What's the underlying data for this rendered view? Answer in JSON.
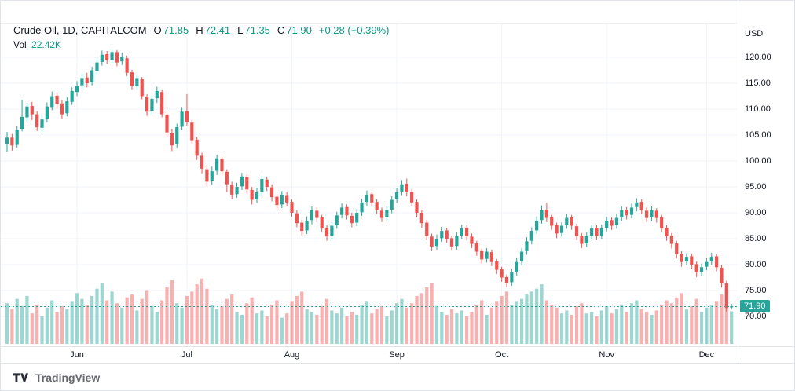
{
  "header": {
    "title": "Crude Oil, 1D, CAPITALCOM",
    "ohlc": {
      "o_label": "O",
      "o": "71.85",
      "h_label": "H",
      "h": "72.41",
      "l_label": "L",
      "l": "71.35",
      "c_label": "C",
      "c": "71.90"
    },
    "change": "+0.28 (+0.39%)",
    "vol_label": "Vol",
    "vol_value": "22.42K"
  },
  "price_axis": {
    "currency": "USD",
    "labels": [
      "120.00",
      "115.00",
      "110.00",
      "105.00",
      "100.00",
      "95.00",
      "90.00",
      "85.00",
      "80.00",
      "75.00",
      "70.00"
    ],
    "last_price_label": "71.90"
  },
  "time_axis": {
    "labels": [
      {
        "text": "Jun",
        "index": 14
      },
      {
        "text": "Jul",
        "index": 36
      },
      {
        "text": "Aug",
        "index": 57
      },
      {
        "text": "Sep",
        "index": 78
      },
      {
        "text": "Oct",
        "index": 99
      },
      {
        "text": "Nov",
        "index": 120
      },
      {
        "text": "Dec",
        "index": 140
      }
    ]
  },
  "footer": {
    "brand": "TradingView"
  },
  "colors": {
    "up": "#26a69a",
    "down": "#ef5350",
    "value_text": "#089981",
    "vol_up": "rgba(38,166,154,0.45)",
    "vol_down": "rgba(239,83,80,0.45)",
    "grid": "#f0f3fa",
    "border": "#e0e3eb",
    "price_line": "#26a69a",
    "last_tag_bg": "#26a69a"
  },
  "chart_data": {
    "type": "candlestick",
    "title": "Crude Oil, 1D, CAPITALCOM",
    "symbol": "Crude Oil",
    "interval": "1D",
    "exchange": "CAPITALCOM",
    "legend_position": "top-left",
    "y_axis": {
      "currency": "USD",
      "tick_min": 70,
      "tick_max": 120,
      "tick_step": 5
    },
    "x_axis_months": [
      "Jun",
      "Jul",
      "Aug",
      "Sep",
      "Oct",
      "Nov",
      "Dec"
    ],
    "last_price": 71.9,
    "last_volume_k": 22.42,
    "columns": [
      "open",
      "high",
      "low",
      "close",
      "volume_k"
    ],
    "candles": [
      [
        103.2,
        105.6,
        101.8,
        104.5,
        28
      ],
      [
        104.5,
        105.2,
        102.0,
        103.0,
        24
      ],
      [
        103.1,
        106.8,
        102.6,
        106.0,
        31
      ],
      [
        106.2,
        111.8,
        105.7,
        108.5,
        26
      ],
      [
        108.4,
        111.2,
        107.6,
        110.5,
        33
      ],
      [
        110.6,
        111.4,
        107.9,
        109.0,
        21
      ],
      [
        109.0,
        109.6,
        105.8,
        106.5,
        27
      ],
      [
        106.4,
        109.0,
        105.5,
        108.0,
        19
      ],
      [
        108.1,
        111.3,
        107.4,
        110.5,
        25
      ],
      [
        110.4,
        113.4,
        109.8,
        112.5,
        30
      ],
      [
        112.6,
        113.2,
        110.1,
        111.0,
        22
      ],
      [
        111.1,
        111.7,
        108.2,
        109.0,
        26
      ],
      [
        109.2,
        112.3,
        108.6,
        111.5,
        24
      ],
      [
        111.4,
        114.2,
        110.8,
        113.5,
        29
      ],
      [
        113.3,
        115.4,
        112.5,
        114.5,
        35
      ],
      [
        114.6,
        116.8,
        113.9,
        116.0,
        31
      ],
      [
        116.1,
        117.0,
        114.2,
        115.0,
        27
      ],
      [
        115.2,
        118.2,
        114.6,
        117.5,
        33
      ],
      [
        117.4,
        119.8,
        116.6,
        119.0,
        38
      ],
      [
        119.1,
        121.3,
        118.4,
        120.5,
        42
      ],
      [
        120.6,
        121.2,
        118.7,
        119.5,
        30
      ],
      [
        119.4,
        121.6,
        118.9,
        121.0,
        36
      ],
      [
        121.0,
        121.4,
        118.3,
        119.0,
        28
      ],
      [
        119.2,
        120.9,
        118.5,
        120.0,
        25
      ],
      [
        119.8,
        120.3,
        116.4,
        117.0,
        32
      ],
      [
        117.1,
        117.6,
        113.8,
        114.5,
        34
      ],
      [
        114.4,
        116.7,
        113.7,
        116.0,
        23
      ],
      [
        115.8,
        116.2,
        111.9,
        112.5,
        31
      ],
      [
        112.4,
        112.9,
        108.7,
        109.5,
        37
      ],
      [
        109.7,
        112.6,
        109.0,
        112.0,
        26
      ],
      [
        112.1,
        114.3,
        111.2,
        113.5,
        22
      ],
      [
        113.3,
        113.8,
        108.4,
        109.0,
        30
      ],
      [
        108.9,
        109.4,
        104.6,
        105.5,
        39
      ],
      [
        105.4,
        106.2,
        101.9,
        103.0,
        44
      ],
      [
        103.2,
        107.2,
        102.5,
        106.5,
        28
      ],
      [
        106.6,
        110.4,
        105.9,
        109.5,
        25
      ],
      [
        109.6,
        112.9,
        106.8,
        107.5,
        33
      ],
      [
        107.4,
        107.9,
        103.2,
        104.0,
        36
      ],
      [
        104.1,
        104.7,
        100.2,
        101.0,
        41
      ],
      [
        101.0,
        101.6,
        97.6,
        98.5,
        45
      ],
      [
        98.4,
        99.2,
        95.1,
        96.0,
        38
      ],
      [
        96.2,
        98.9,
        95.4,
        98.0,
        27
      ],
      [
        98.1,
        101.2,
        97.3,
        100.5,
        24
      ],
      [
        100.4,
        100.9,
        97.2,
        98.0,
        26
      ],
      [
        97.9,
        98.4,
        94.0,
        95.5,
        31
      ],
      [
        95.4,
        96.0,
        92.6,
        93.5,
        34
      ],
      [
        93.6,
        95.8,
        92.9,
        95.0,
        22
      ],
      [
        95.1,
        97.7,
        94.4,
        97.0,
        20
      ],
      [
        96.9,
        97.4,
        93.7,
        94.5,
        28
      ],
      [
        94.4,
        95.0,
        91.6,
        92.5,
        32
      ],
      [
        92.6,
        94.8,
        91.9,
        94.0,
        21
      ],
      [
        94.1,
        97.2,
        93.4,
        96.5,
        23
      ],
      [
        96.4,
        97.0,
        94.2,
        95.0,
        19
      ],
      [
        94.9,
        95.5,
        92.2,
        93.0,
        27
      ],
      [
        93.1,
        93.6,
        90.6,
        91.5,
        30
      ],
      [
        91.6,
        94.2,
        90.9,
        93.5,
        18
      ],
      [
        93.4,
        94.0,
        91.2,
        92.0,
        21
      ],
      [
        92.1,
        92.6,
        89.2,
        90.0,
        29
      ],
      [
        89.9,
        90.5,
        87.2,
        88.0,
        33
      ],
      [
        88.1,
        88.7,
        85.6,
        86.5,
        36
      ],
      [
        86.6,
        89.3,
        85.9,
        88.5,
        24
      ],
      [
        88.6,
        91.2,
        87.8,
        90.5,
        22
      ],
      [
        90.4,
        91.0,
        88.2,
        89.0,
        20
      ],
      [
        89.1,
        89.6,
        86.2,
        87.0,
        26
      ],
      [
        87.1,
        87.6,
        84.6,
        85.5,
        31
      ],
      [
        85.6,
        88.2,
        84.9,
        87.5,
        23
      ],
      [
        87.6,
        90.2,
        86.9,
        89.5,
        21
      ],
      [
        89.6,
        91.8,
        88.9,
        91.0,
        25
      ],
      [
        91.1,
        91.6,
        88.7,
        89.5,
        19
      ],
      [
        89.4,
        90.0,
        87.2,
        88.0,
        22
      ],
      [
        88.1,
        90.7,
        87.4,
        90.0,
        20
      ],
      [
        90.1,
        92.7,
        89.4,
        92.0,
        27
      ],
      [
        92.1,
        94.3,
        91.4,
        93.5,
        29
      ],
      [
        93.6,
        94.1,
        91.2,
        92.0,
        21
      ],
      [
        92.1,
        92.6,
        89.7,
        90.5,
        24
      ],
      [
        90.4,
        91.0,
        88.2,
        89.0,
        26
      ],
      [
        89.1,
        91.3,
        88.4,
        90.5,
        19
      ],
      [
        90.6,
        93.2,
        89.9,
        92.5,
        23
      ],
      [
        92.6,
        94.8,
        91.9,
        94.0,
        28
      ],
      [
        94.1,
        96.3,
        93.4,
        95.5,
        31
      ],
      [
        95.6,
        96.6,
        93.2,
        94.0,
        25
      ],
      [
        94.0,
        94.5,
        91.2,
        92.0,
        28
      ],
      [
        92.1,
        92.6,
        89.1,
        90.0,
        33
      ],
      [
        90.0,
        90.6,
        87.1,
        88.0,
        35
      ],
      [
        88.1,
        88.6,
        84.7,
        85.5,
        39
      ],
      [
        85.4,
        86.0,
        82.6,
        83.5,
        42
      ],
      [
        83.6,
        85.8,
        82.9,
        85.0,
        26
      ],
      [
        85.1,
        87.3,
        84.4,
        86.5,
        22
      ],
      [
        86.6,
        87.1,
        84.2,
        85.0,
        20
      ],
      [
        85.1,
        85.6,
        82.7,
        83.5,
        24
      ],
      [
        83.6,
        86.2,
        82.9,
        85.5,
        21
      ],
      [
        85.6,
        87.7,
        84.9,
        87.0,
        23
      ],
      [
        87.1,
        87.6,
        84.7,
        85.5,
        19
      ],
      [
        85.4,
        86.0,
        83.2,
        84.0,
        22
      ],
      [
        84.1,
        84.6,
        81.7,
        82.5,
        27
      ],
      [
        82.6,
        83.1,
        80.2,
        81.0,
        30
      ],
      [
        81.1,
        83.2,
        80.4,
        82.5,
        20
      ],
      [
        82.4,
        82.9,
        79.7,
        80.5,
        25
      ],
      [
        80.6,
        81.1,
        78.2,
        79.0,
        29
      ],
      [
        79.1,
        79.6,
        76.7,
        77.5,
        33
      ],
      [
        77.6,
        78.1,
        75.6,
        76.5,
        36
      ],
      [
        76.6,
        79.2,
        75.9,
        78.5,
        27
      ],
      [
        78.6,
        81.2,
        77.9,
        80.5,
        29
      ],
      [
        80.6,
        83.2,
        79.9,
        82.5,
        31
      ],
      [
        82.6,
        85.3,
        81.9,
        84.5,
        34
      ],
      [
        84.6,
        87.2,
        83.9,
        86.5,
        36
      ],
      [
        86.6,
        89.3,
        85.9,
        88.5,
        38
      ],
      [
        88.6,
        91.4,
        87.9,
        90.5,
        41
      ],
      [
        90.6,
        91.9,
        88.2,
        89.0,
        30
      ],
      [
        89.1,
        89.6,
        86.7,
        87.5,
        27
      ],
      [
        87.6,
        88.1,
        85.1,
        86.0,
        25
      ],
      [
        86.1,
        88.2,
        85.4,
        87.5,
        21
      ],
      [
        87.6,
        89.7,
        86.9,
        89.0,
        23
      ],
      [
        89.1,
        89.6,
        86.7,
        87.5,
        20
      ],
      [
        87.4,
        87.9,
        84.7,
        85.5,
        26
      ],
      [
        85.6,
        86.1,
        83.2,
        84.0,
        28
      ],
      [
        84.1,
        86.2,
        83.4,
        85.5,
        21
      ],
      [
        85.6,
        87.7,
        84.9,
        87.0,
        22
      ],
      [
        87.1,
        87.6,
        84.7,
        85.5,
        19
      ],
      [
        85.6,
        87.7,
        84.9,
        87.0,
        23
      ],
      [
        87.1,
        89.2,
        86.4,
        88.5,
        26
      ],
      [
        88.6,
        89.1,
        86.7,
        87.5,
        21
      ],
      [
        87.6,
        89.7,
        86.9,
        89.0,
        24
      ],
      [
        89.1,
        91.2,
        88.4,
        90.5,
        27
      ],
      [
        90.6,
        91.1,
        88.7,
        89.5,
        22
      ],
      [
        89.6,
        91.8,
        88.9,
        91.0,
        28
      ],
      [
        91.1,
        92.8,
        90.3,
        92.0,
        30
      ],
      [
        92.1,
        92.6,
        89.7,
        90.5,
        24
      ],
      [
        90.4,
        91.0,
        88.2,
        89.0,
        22
      ],
      [
        89.1,
        91.2,
        88.4,
        90.5,
        20
      ],
      [
        90.4,
        90.9,
        88.1,
        89.0,
        23
      ],
      [
        89.1,
        89.6,
        86.2,
        87.0,
        27
      ],
      [
        87.1,
        87.6,
        84.6,
        85.5,
        30
      ],
      [
        85.6,
        86.1,
        83.1,
        84.0,
        28
      ],
      [
        84.1,
        84.6,
        81.2,
        82.0,
        32
      ],
      [
        82.1,
        82.6,
        79.6,
        80.5,
        35
      ],
      [
        80.6,
        82.2,
        79.9,
        81.5,
        24
      ],
      [
        81.6,
        82.1,
        79.1,
        80.0,
        26
      ],
      [
        80.1,
        80.6,
        77.6,
        78.5,
        31
      ],
      [
        78.6,
        80.2,
        77.9,
        79.5,
        22
      ],
      [
        79.6,
        81.2,
        78.9,
        80.5,
        25
      ],
      [
        80.6,
        82.3,
        79.9,
        81.5,
        27
      ],
      [
        81.6,
        82.1,
        78.7,
        79.5,
        29
      ],
      [
        79.4,
        79.9,
        75.6,
        76.5,
        34
      ],
      [
        76.4,
        76.9,
        70.9,
        71.62,
        38
      ],
      [
        71.85,
        72.41,
        71.35,
        71.9,
        22.42
      ]
    ]
  }
}
